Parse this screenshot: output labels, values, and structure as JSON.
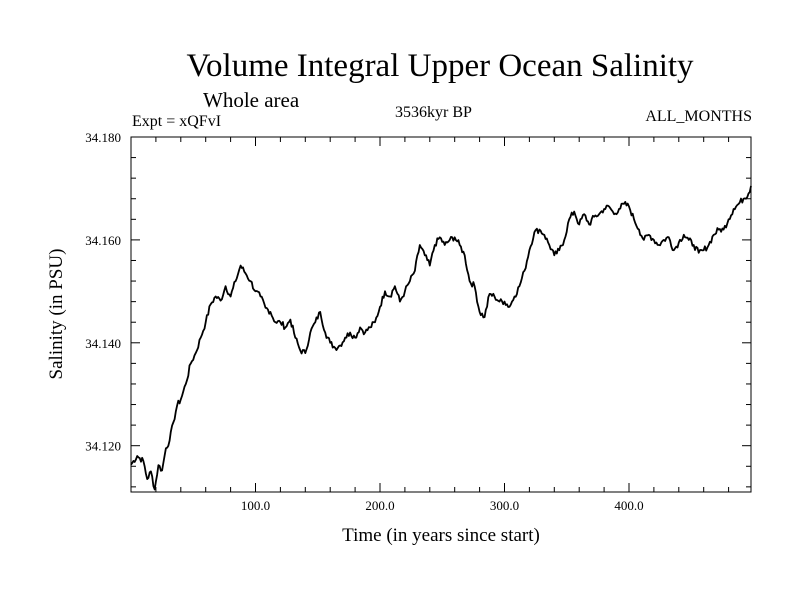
{
  "header": {
    "title": "Volume Integral Upper Ocean Salinity",
    "subtitle": "Whole area",
    "expt": "Expt = xQFvI",
    "period": "3536kyr BP",
    "months": "ALL_MONTHS"
  },
  "chart_data": {
    "type": "line",
    "title": "Volume Integral Upper Ocean Salinity",
    "xlabel": "Time (in years since start)",
    "ylabel": "Salinity (in PSU)",
    "xlim": [
      0,
      498
    ],
    "ylim": [
      34.111,
      34.18
    ],
    "xticks": [
      100,
      200,
      300,
      400
    ],
    "xtick_labels": [
      "100.0",
      "200.0",
      "300.0",
      "400.0"
    ],
    "yticks": [
      34.12,
      34.14,
      34.16,
      34.18
    ],
    "ytick_labels": [
      "34.120",
      "34.140",
      "34.160",
      "34.180"
    ],
    "grid": false,
    "line_color": "#000000",
    "series": [
      {
        "name": "Salinity",
        "x": [
          0,
          5,
          10,
          13,
          16,
          19,
          22,
          25,
          28,
          31,
          34,
          37,
          40,
          44,
          48,
          52,
          56,
          60,
          64,
          68,
          72,
          76,
          80,
          84,
          88,
          92,
          96,
          100,
          104,
          108,
          112,
          116,
          120,
          124,
          128,
          132,
          136,
          140,
          144,
          148,
          152,
          156,
          160,
          164,
          168,
          172,
          176,
          180,
          184,
          188,
          192,
          196,
          200,
          204,
          208,
          212,
          216,
          220,
          224,
          228,
          232,
          236,
          240,
          244,
          248,
          252,
          256,
          260,
          264,
          268,
          272,
          276,
          280,
          284,
          288,
          292,
          296,
          300,
          304,
          308,
          312,
          316,
          320,
          324,
          328,
          332,
          336,
          340,
          344,
          348,
          352,
          356,
          360,
          364,
          368,
          372,
          376,
          380,
          384,
          388,
          392,
          396,
          400,
          404,
          408,
          412,
          416,
          420,
          424,
          428,
          432,
          436,
          440,
          444,
          448,
          452,
          456,
          460,
          464,
          468,
          472,
          476,
          480,
          484,
          488,
          492,
          496,
          498
        ],
        "values": [
          34.1163,
          34.118,
          34.117,
          34.1135,
          34.115,
          34.1115,
          34.1162,
          34.1152,
          34.1195,
          34.121,
          34.1245,
          34.1278,
          34.129,
          34.132,
          34.136,
          34.138,
          34.141,
          34.144,
          34.1475,
          34.149,
          34.1482,
          34.151,
          34.149,
          34.152,
          34.155,
          34.1535,
          34.152,
          34.15,
          34.149,
          34.1468,
          34.146,
          34.144,
          34.144,
          34.143,
          34.1445,
          34.141,
          34.1385,
          34.138,
          34.142,
          34.144,
          34.146,
          34.142,
          34.14,
          34.139,
          34.1395,
          34.141,
          34.142,
          34.141,
          34.143,
          34.142,
          34.143,
          34.144,
          34.147,
          34.15,
          34.149,
          34.151,
          34.148,
          34.15,
          34.152,
          34.154,
          34.159,
          34.157,
          34.155,
          34.159,
          34.1605,
          34.159,
          34.16,
          34.1605,
          34.159,
          34.157,
          34.152,
          34.151,
          34.146,
          34.145,
          34.1495,
          34.149,
          34.148,
          34.148,
          34.147,
          34.149,
          34.151,
          34.154,
          34.158,
          34.1615,
          34.162,
          34.161,
          34.159,
          34.157,
          34.158,
          34.16,
          34.164,
          34.1655,
          34.163,
          34.165,
          34.163,
          34.1645,
          34.165,
          34.166,
          34.1665,
          34.165,
          34.166,
          34.167,
          34.1665,
          34.164,
          34.162,
          34.16,
          34.161,
          34.16,
          34.159,
          34.16,
          34.1605,
          34.158,
          34.1595,
          34.161,
          34.16,
          34.159,
          34.1575,
          34.158,
          34.159,
          34.161,
          34.162,
          34.162,
          34.164,
          34.166,
          34.167,
          34.168,
          34.169,
          34.1705
        ]
      }
    ]
  }
}
